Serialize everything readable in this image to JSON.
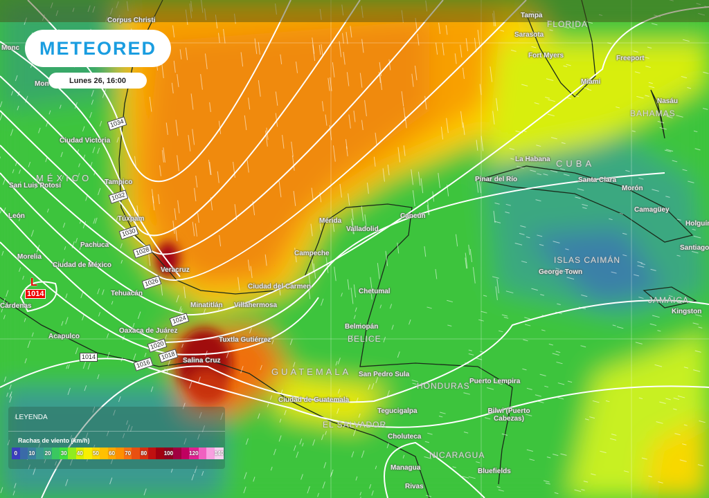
{
  "header": {
    "logo_text": "METEORED",
    "date": "Lunes 26, 16:00"
  },
  "low_pressure": {
    "symbol": "L",
    "value": "1014"
  },
  "isobars": [
    "1034",
    "1032",
    "1030",
    "1028",
    "1026",
    "1024",
    "1020",
    "1018",
    "1016",
    "1014"
  ],
  "countries": [
    "MÉXICO",
    "FLORIDA",
    "BAHAMAS",
    "CUBA",
    "ISLAS CAIMÁN",
    "JAMAICA",
    "BELICE",
    "GUATEMALA",
    "HONDURAS",
    "EL SALVADOR",
    "NICARAGUA"
  ],
  "cities": [
    "Corpus Christi",
    "Monc",
    "Mon",
    "Ciudad Victoria",
    "San Luis Potosí",
    "Tampico",
    "Túxpam",
    "León",
    "Pachuca",
    "Morelia",
    "Ciudad de México",
    "Veracruz",
    "Tehuacán",
    "Cárdenas",
    "Minatitlán",
    "Villahermosa",
    "Oaxaca de Juárez",
    "Tuxtla Gutiérrez",
    "Acapulco",
    "Salina Cruz",
    "Ciudad del Carmen",
    "Campeche",
    "Mérida",
    "Valladolid",
    "Cancún",
    "Chetumal",
    "Belmopán",
    "San Pedro Sula",
    "Ciudad de Guatemala",
    "Tegucigalpa",
    "Choluteca",
    "Managua",
    "Rivas",
    "Puerto Lempira",
    "Bilwi (Puerto Cabezas)",
    "Bluefields",
    "Tampa",
    "Sarasota",
    "Fort Myers",
    "Miami",
    "Freeport",
    "Nasáu",
    "La Habana",
    "Pinar del Río",
    "Santa Clara",
    "Morón",
    "Camagüey",
    "Holguín",
    "Santiago",
    "George Town",
    "Kingston"
  ],
  "legend": {
    "title": "LEYENDA",
    "subtitle": "Rachas de viento (km/h)",
    "scale": [
      {
        "label": "0",
        "color": "#3a3fc0"
      },
      {
        "label": "",
        "color": "#3a6aa8"
      },
      {
        "label": "10",
        "color": "#3a80a0"
      },
      {
        "label": "",
        "color": "#3a9a90"
      },
      {
        "label": "20",
        "color": "#3aaa80"
      },
      {
        "label": "",
        "color": "#3ac860"
      },
      {
        "label": "30",
        "color": "#40e040"
      },
      {
        "label": "",
        "color": "#90ec20"
      },
      {
        "label": "40",
        "color": "#d8f000"
      },
      {
        "label": "",
        "color": "#f8f000"
      },
      {
        "label": "50",
        "color": "#ffd800"
      },
      {
        "label": "",
        "color": "#ffc000"
      },
      {
        "label": "60",
        "color": "#ffa800"
      },
      {
        "label": "",
        "color": "#ff9000"
      },
      {
        "label": "70",
        "color": "#f87010"
      },
      {
        "label": "",
        "color": "#e85010"
      },
      {
        "label": "80",
        "color": "#d83010"
      },
      {
        "label": "",
        "color": "#c01010"
      },
      {
        "label": "",
        "color": "#a00010"
      },
      {
        "label": "100",
        "color": "#900020"
      },
      {
        "label": "",
        "color": "#a00040"
      },
      {
        "label": "",
        "color": "#c00060"
      },
      {
        "label": "120",
        "color": "#e02090"
      },
      {
        "label": "",
        "color": "#f060c0"
      },
      {
        "label": "",
        "color": "#f8a0e0"
      },
      {
        "label": "140",
        "color": "#f8d0f0"
      }
    ]
  },
  "colors": {
    "brand": "#1a9de0",
    "low_marker": "#e00000"
  }
}
